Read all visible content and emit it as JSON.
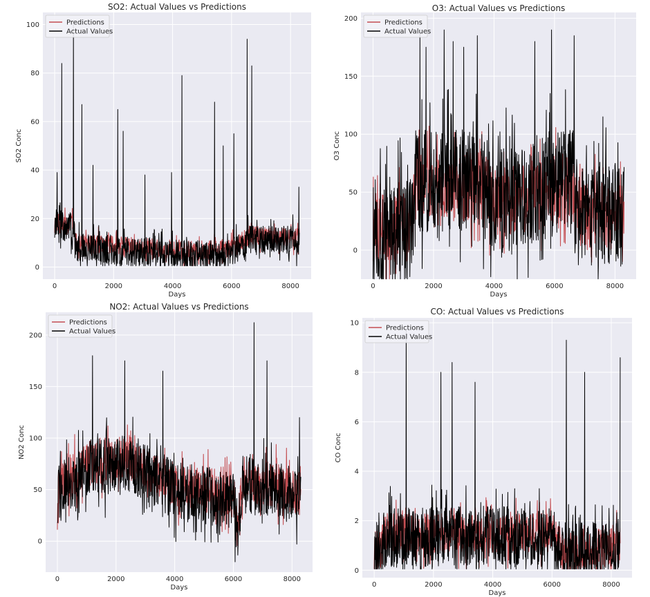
{
  "chart_data": [
    {
      "type": "line",
      "title": "SO2: Actual Values vs Predictions",
      "xlabel": "Days",
      "ylabel": "SO2 Conc",
      "xlim": [
        -400,
        8700
      ],
      "ylim": [
        -5,
        105
      ],
      "xticks": [
        0,
        2000,
        4000,
        6000,
        8000
      ],
      "yticks": [
        0,
        20,
        40,
        60,
        80,
        100
      ],
      "legend": {
        "position": "top-left",
        "entries": [
          "Predictions",
          "Actual Values"
        ]
      },
      "grid": true,
      "colors": {
        "Predictions": "#c44e52",
        "Actual Values": "#000000"
      },
      "n_points": 8300,
      "series": [
        {
          "name": "Predictions",
          "profile": [
            [
              0,
              18
            ],
            [
              650,
              17
            ],
            [
              750,
              10
            ],
            [
              2000,
              9
            ],
            [
              3200,
              8
            ],
            [
              4500,
              7
            ],
            [
              5800,
              7
            ],
            [
              6200,
              9
            ],
            [
              6600,
              13
            ],
            [
              8300,
              12
            ]
          ],
          "noise": 4
        },
        {
          "name": "Actual Values",
          "profile": [
            [
              0,
              18
            ],
            [
              650,
              16
            ],
            [
              750,
              8
            ],
            [
              2000,
              7
            ],
            [
              3200,
              6
            ],
            [
              4500,
              5
            ],
            [
              5800,
              5
            ],
            [
              6200,
              7
            ],
            [
              6600,
              11
            ],
            [
              8300,
              11
            ]
          ],
          "noise": 6,
          "spikes": [
            [
              80,
              39
            ],
            [
              240,
              84
            ],
            [
              640,
              100
            ],
            [
              920,
              67
            ],
            [
              1300,
              42
            ],
            [
              2140,
              65
            ],
            [
              2320,
              56
            ],
            [
              3060,
              38
            ],
            [
              3970,
              39
            ],
            [
              4320,
              79
            ],
            [
              5420,
              68
            ],
            [
              5720,
              50
            ],
            [
              6080,
              55
            ],
            [
              6530,
              94
            ],
            [
              6690,
              83
            ],
            [
              8280,
              33
            ]
          ]
        }
      ]
    },
    {
      "type": "line",
      "title": "O3: Actual Values vs Predictions",
      "xlabel": "Days",
      "ylabel": "O3 Conc",
      "xlim": [
        -400,
        8700
      ],
      "ylim": [
        -25,
        205
      ],
      "xticks": [
        0,
        2000,
        4000,
        6000,
        8000
      ],
      "yticks": [
        0,
        50,
        100,
        150,
        200
      ],
      "legend": {
        "position": "top-left",
        "entries": [
          "Predictions",
          "Actual Values"
        ]
      },
      "grid": true,
      "colors": {
        "Predictions": "#c44e52",
        "Actual Values": "#000000"
      },
      "n_points": 8300,
      "series": [
        {
          "name": "Predictions",
          "profile": [
            [
              0,
              20
            ],
            [
              1300,
              20
            ],
            [
              1400,
              55
            ],
            [
              3600,
              55
            ],
            [
              4000,
              40
            ],
            [
              6600,
              55
            ],
            [
              6800,
              30
            ],
            [
              8300,
              30
            ]
          ],
          "noise": 30
        },
        {
          "name": "Actual Values",
          "profile": [
            [
              0,
              18
            ],
            [
              1300,
              18
            ],
            [
              1400,
              60
            ],
            [
              3600,
              60
            ],
            [
              4000,
              40
            ],
            [
              6600,
              60
            ],
            [
              6800,
              30
            ],
            [
              8300,
              30
            ]
          ],
          "noise": 45,
          "spikes": [
            [
              1550,
              190
            ],
            [
              1750,
              175
            ],
            [
              2350,
              190
            ],
            [
              2650,
              180
            ],
            [
              3000,
              175
            ],
            [
              3450,
              185
            ],
            [
              5350,
              180
            ],
            [
              5900,
              190
            ],
            [
              6650,
              185
            ],
            [
              7600,
              115
            ]
          ]
        }
      ]
    },
    {
      "type": "line",
      "title": "NO2: Actual Values vs Predictions",
      "xlabel": "Days",
      "ylabel": "NO2 Conc",
      "xlim": [
        -400,
        8700
      ],
      "ylim": [
        -30,
        222
      ],
      "xticks": [
        0,
        2000,
        4000,
        6000,
        8000
      ],
      "yticks": [
        0,
        50,
        100,
        150,
        200
      ],
      "legend": {
        "position": "top-left",
        "entries": [
          "Predictions",
          "Actual Values"
        ]
      },
      "grid": true,
      "colors": {
        "Predictions": "#c44e52",
        "Actual Values": "#000000"
      },
      "n_points": 8300,
      "series": [
        {
          "name": "Predictions",
          "profile": [
            [
              0,
              50
            ],
            [
              1000,
              75
            ],
            [
              2500,
              80
            ],
            [
              4000,
              55
            ],
            [
              6000,
              45
            ],
            [
              6150,
              10
            ],
            [
              6300,
              60
            ],
            [
              7500,
              55
            ],
            [
              8300,
              45
            ]
          ],
          "noise": 22
        },
        {
          "name": "Actual Values",
          "profile": [
            [
              0,
              45
            ],
            [
              1000,
              70
            ],
            [
              2500,
              75
            ],
            [
              4000,
              50
            ],
            [
              6000,
              40
            ],
            [
              6150,
              5
            ],
            [
              6300,
              55
            ],
            [
              7500,
              50
            ],
            [
              8300,
              40
            ]
          ],
          "noise": 28,
          "spikes": [
            [
              1200,
              180
            ],
            [
              2300,
              175
            ],
            [
              3600,
              165
            ],
            [
              6700,
              212
            ],
            [
              7150,
              175
            ],
            [
              8250,
              120
            ]
          ]
        }
      ]
    },
    {
      "type": "line",
      "title": "CO: Actual Values vs Predictions",
      "xlabel": "Days",
      "ylabel": "CO Conc",
      "xlim": [
        -400,
        8700
      ],
      "ylim": [
        -0.3,
        10.2
      ],
      "xticks": [
        0,
        2000,
        4000,
        6000,
        8000
      ],
      "yticks": [
        0,
        2,
        4,
        6,
        8,
        10
      ],
      "legend": {
        "position": "top-left",
        "entries": [
          "Predictions",
          "Actual Values"
        ]
      },
      "grid": true,
      "colors": {
        "Predictions": "#c44e52",
        "Actual Values": "#000000"
      },
      "n_points": 8300,
      "series": [
        {
          "name": "Predictions",
          "profile": [
            [
              0,
              0.8
            ],
            [
              250,
              0.8
            ],
            [
              300,
              1.5
            ],
            [
              4000,
              1.5
            ],
            [
              6000,
              1.5
            ],
            [
              6300,
              0.8
            ],
            [
              8300,
              1.0
            ]
          ],
          "noise": 0.8
        },
        {
          "name": "Actual Values",
          "profile": [
            [
              0,
              0.8
            ],
            [
              250,
              0.8
            ],
            [
              300,
              1.3
            ],
            [
              4000,
              1.4
            ],
            [
              6000,
              1.3
            ],
            [
              6300,
              0.7
            ],
            [
              8300,
              0.9
            ]
          ],
          "noise": 1.2,
          "spikes": [
            [
              1080,
              10
            ],
            [
              2250,
              8.0
            ],
            [
              2630,
              8.4
            ],
            [
              3400,
              7.6
            ],
            [
              6480,
              9.3
            ],
            [
              7100,
              8.0
            ],
            [
              8300,
              8.6
            ]
          ]
        }
      ]
    }
  ]
}
